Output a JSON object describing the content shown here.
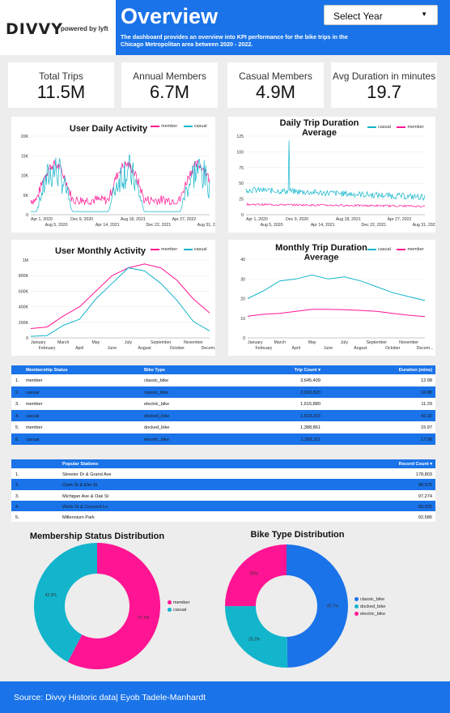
{
  "header": {
    "logo": "DIVVY",
    "logo_sub": "powered by lyft",
    "title": "Overview",
    "subtitle": "The dashboard provides an overview into KPI performance for the bike trips in the Chicago Metropolitan area between 2020 - 2022.",
    "select_year_label": "Select Year"
  },
  "kpis": [
    {
      "label": "Total Trips",
      "value": "11.5M"
    },
    {
      "label": "Annual Members",
      "value": "6.7M"
    },
    {
      "label": "Casual Members",
      "value": "4.9M"
    },
    {
      "label": "Avg Duration in minutes",
      "value": "19.7"
    }
  ],
  "colors": {
    "member": "#ff1493",
    "casual": "#12b5cb",
    "accent": "#1a73e8",
    "classic_bike": "#1a73e8",
    "docked_bike": "#12b5cb",
    "electric_bike": "#ff1493"
  },
  "charts": {
    "daily_activity": {
      "title": "User Daily Activity",
      "legend": [
        "member",
        "casual"
      ],
      "y_ticks": [
        "20K",
        "15K",
        "10K",
        "5K",
        "0"
      ],
      "x_ticks_top": [
        "Apr 1, 2020",
        "Dec 9, 2020",
        "Aug 18, 2021",
        "Apr 27, 2022"
      ],
      "x_ticks_bottom": [
        "Aug 5, 2020",
        "Apr 14, 2021",
        "Dec 22, 2021",
        "Aug 31, 2022"
      ]
    },
    "daily_duration": {
      "title": "Daily Trip Duration Average",
      "legend": [
        "casual",
        "member"
      ],
      "y_ticks": [
        "125",
        "100",
        "75",
        "50",
        "25",
        "0"
      ],
      "x_ticks_top": [
        "Apr 1, 2020",
        "Dec 9, 2020",
        "Aug 18, 2021",
        "Apr 27, 2022"
      ],
      "x_ticks_bottom": [
        "Aug 5, 2020",
        "Apr 14, 2021",
        "Dec 22, 2021",
        "Aug 31, 2022"
      ]
    },
    "monthly_activity": {
      "title": "User Monthly Activity",
      "legend": [
        "member",
        "casual"
      ],
      "y_ticks": [
        "1M",
        "800K",
        "600K",
        "400K",
        "200K",
        "0"
      ],
      "x_ticks_top": [
        "January",
        "March",
        "May",
        "July",
        "September",
        "November"
      ],
      "x_ticks_bottom": [
        "February",
        "April",
        "June",
        "August",
        "October",
        "Decem..."
      ]
    },
    "monthly_duration": {
      "title": "Monthly Trip Duration Average",
      "legend": [
        "casual",
        "member"
      ],
      "y_ticks": [
        "40",
        "30",
        "20",
        "10",
        "0"
      ],
      "x_ticks_top": [
        "January",
        "March",
        "May",
        "July",
        "September",
        "November"
      ],
      "x_ticks_bottom": [
        "February",
        "April",
        "June",
        "August",
        "October",
        "Decem..."
      ]
    }
  },
  "chart_data": [
    {
      "type": "line",
      "title": "User Monthly Activity",
      "categories": [
        "January",
        "February",
        "March",
        "April",
        "May",
        "June",
        "July",
        "August",
        "September",
        "October",
        "November",
        "December"
      ],
      "series": [
        {
          "name": "member",
          "values": [
            120000,
            140000,
            280000,
            400000,
            600000,
            800000,
            900000,
            950000,
            900000,
            740000,
            500000,
            320000
          ]
        },
        {
          "name": "casual",
          "values": [
            20000,
            30000,
            160000,
            240000,
            500000,
            700000,
            900000,
            860000,
            700000,
            480000,
            210000,
            90000
          ]
        }
      ],
      "ylim": [
        0,
        1000000
      ]
    },
    {
      "type": "line",
      "title": "Monthly Trip Duration Average",
      "categories": [
        "January",
        "February",
        "March",
        "April",
        "May",
        "June",
        "July",
        "August",
        "September",
        "October",
        "November",
        "December"
      ],
      "series": [
        {
          "name": "casual",
          "values": [
            20,
            24,
            29,
            30,
            32,
            30,
            31,
            29,
            26,
            23,
            21,
            19
          ]
        },
        {
          "name": "member",
          "values": [
            11,
            12,
            12.5,
            13.5,
            14.5,
            14.5,
            14.3,
            14,
            13.5,
            12.5,
            11.5,
            10.8
          ]
        }
      ],
      "ylim": [
        0,
        40
      ]
    },
    {
      "type": "pie",
      "title": "Membership Status Distribution",
      "categories": [
        "member",
        "casual"
      ],
      "values": [
        57.7,
        42.3
      ],
      "value_labels": [
        "57.7%",
        "42.3%"
      ]
    },
    {
      "type": "pie",
      "title": "Bike Type Distribution",
      "categories": [
        "classic_bike",
        "docked_bike",
        "electric_bike"
      ],
      "values": [
        49.7,
        25.2,
        25.0
      ],
      "value_labels": [
        "49.7%",
        "25.2%",
        "25%"
      ]
    }
  ],
  "membership_table": {
    "headers": [
      "Membership Status",
      "Bike Type",
      "Trip Count ▾",
      "Duration (mins)"
    ],
    "rows": [
      [
        "1.",
        "member",
        "classic_bike",
        "3,645,409",
        "12.98"
      ],
      [
        "2.",
        "casual",
        "classic_bike",
        "2,092,820",
        "24.88"
      ],
      [
        "3.",
        "member",
        "electric_bike",
        "1,615,880",
        "11.29"
      ],
      [
        "4.",
        "casual",
        "docked_bike",
        "1,523,263",
        "42.32"
      ],
      [
        "5.",
        "member",
        "docked_bike",
        "1,388,861",
        "15.97"
      ],
      [
        "6.",
        "casual",
        "electric_bike",
        "1,268,311",
        "17.98"
      ]
    ]
  },
  "stations_table": {
    "headers": [
      "Popular Stations",
      "Record Count ▾"
    ],
    "rows": [
      [
        "1.",
        "Streeter Dr & Grand Ave",
        "178,803"
      ],
      [
        "2.",
        "Clark St & Elm St",
        "98,975"
      ],
      [
        "3.",
        "Michigan Ave & Oak St",
        "97,274"
      ],
      [
        "4.",
        "Wells St & Concord Ln",
        "96,925"
      ],
      [
        "5.",
        "Millennium Park",
        "92,586"
      ]
    ]
  },
  "footer": {
    "text": "Source: Divvy Historic data| Eyob Tadele-Manhardt"
  }
}
